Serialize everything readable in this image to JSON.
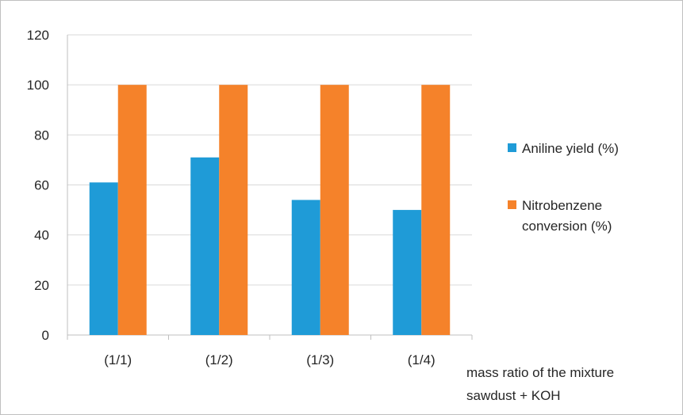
{
  "chart_data": {
    "type": "bar",
    "categories": [
      "(1/1)",
      "(1/2)",
      "(1/3)",
      "(1/4)"
    ],
    "series": [
      {
        "name": "Aniline yield (%)",
        "values": [
          61,
          71,
          54,
          50
        ],
        "color": "#1f9bd7"
      },
      {
        "name": "Nitrobenzene conversion (%)",
        "name_lines": [
          "Nitrobenzene",
          "conversion (%)"
        ],
        "values": [
          100,
          100,
          100,
          100
        ],
        "color": "#f5822a"
      }
    ],
    "xlabel_lines": [
      "mass ratio of the mixture",
      "sawdust + KOH"
    ],
    "ylim": [
      0,
      120
    ],
    "yticks": [
      0,
      20,
      40,
      60,
      80,
      100,
      120
    ],
    "grid": true,
    "legend": "right",
    "colors": {
      "grid": "#d9d9d9",
      "axis": "#bfbfbf",
      "text": "#262626"
    }
  }
}
